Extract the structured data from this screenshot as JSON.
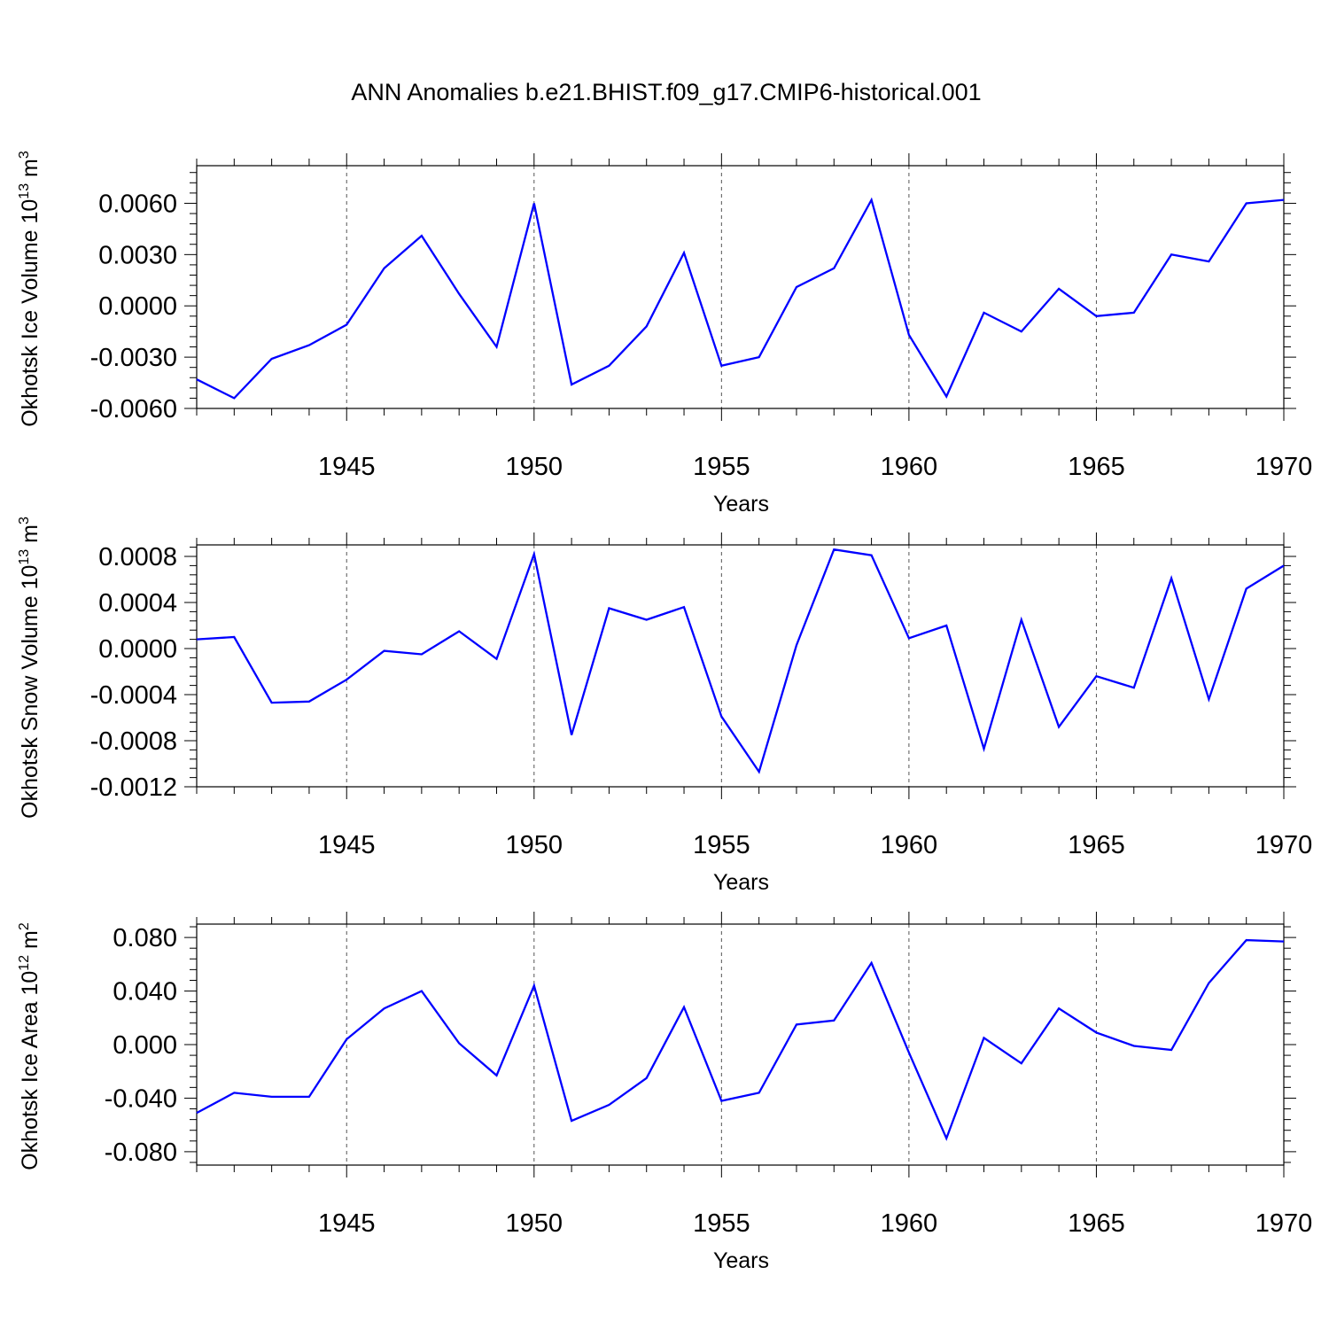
{
  "title": "ANN Anomalies b.e21.BHIST.f09_g17.CMIP6-historical.001",
  "colors": {
    "line": "#0000ff",
    "axis": "#000000",
    "grid": "#555555"
  },
  "chart_data": [
    {
      "type": "line",
      "xlabel": "Years",
      "ylabel": "Okhotsk Ice Volume 10",
      "ylabel_exp": "13",
      "ylabel_unit": " m",
      "ylabel_unit_exp": "3",
      "xlim": [
        1941,
        1970
      ],
      "ylim": [
        -0.006,
        0.0082
      ],
      "xticks": [
        1945,
        1950,
        1955,
        1960,
        1965,
        1970
      ],
      "yticks": [
        -0.006,
        -0.003,
        0.0,
        0.003,
        0.006
      ],
      "ytick_labels": [
        "-0.0060",
        "-0.0030",
        "0.0000",
        "0.0030",
        "0.0060"
      ],
      "grid": "vertical dashed",
      "series": [
        {
          "x": [
            1941,
            1942,
            1943,
            1944,
            1945,
            1946,
            1947,
            1948,
            1949,
            1950,
            1951,
            1952,
            1953,
            1954,
            1955,
            1956,
            1957,
            1958,
            1959,
            1960,
            1961,
            1962,
            1963,
            1964,
            1965,
            1966,
            1967,
            1968,
            1969,
            1970
          ],
          "values": [
            -0.0043,
            -0.0054,
            -0.0031,
            -0.0023,
            -0.0011,
            0.0022,
            0.0041,
            0.0007,
            -0.0024,
            0.006,
            -0.0046,
            -0.0035,
            -0.0012,
            0.0031,
            -0.0035,
            -0.003,
            0.0011,
            0.0022,
            0.0062,
            -0.0017,
            -0.0053,
            -0.0004,
            -0.0015,
            0.001,
            -0.0006,
            -0.0004,
            0.003,
            0.0026,
            0.006,
            0.0062
          ]
        }
      ]
    },
    {
      "type": "line",
      "xlabel": "Years",
      "ylabel": "Okhotsk Snow Volume 10",
      "ylabel_exp": "13",
      "ylabel_unit": " m",
      "ylabel_unit_exp": "3",
      "xlim": [
        1941,
        1970
      ],
      "ylim": [
        -0.0012,
        0.0009
      ],
      "xticks": [
        1945,
        1950,
        1955,
        1960,
        1965,
        1970
      ],
      "yticks": [
        -0.0012,
        -0.0008,
        -0.0004,
        0.0,
        0.0004,
        0.0008
      ],
      "ytick_labels": [
        "-0.0012",
        "-0.0008",
        "-0.0004",
        "0.0000",
        "0.0004",
        "0.0008"
      ],
      "grid": "vertical dashed",
      "series": [
        {
          "x": [
            1941,
            1942,
            1943,
            1944,
            1945,
            1946,
            1947,
            1948,
            1949,
            1950,
            1951,
            1952,
            1953,
            1954,
            1955,
            1956,
            1957,
            1958,
            1959,
            1960,
            1961,
            1962,
            1963,
            1964,
            1965,
            1966,
            1967,
            1968,
            1969,
            1970
          ],
          "values": [
            8e-05,
            0.0001,
            -0.00047,
            -0.00046,
            -0.00027,
            -2e-05,
            -5e-05,
            0.00015,
            -9e-05,
            0.00082,
            -0.00075,
            0.00035,
            0.00025,
            0.00036,
            -0.00059,
            -0.00107,
            3e-05,
            0.00086,
            0.00081,
            9e-05,
            0.0002,
            -0.00087,
            0.00025,
            -0.00068,
            -0.00024,
            -0.00034,
            0.00061,
            -0.00044,
            0.00052,
            0.00072
          ]
        }
      ]
    },
    {
      "type": "line",
      "xlabel": "Years",
      "ylabel": "Okhotsk Ice Area 10",
      "ylabel_exp": "12",
      "ylabel_unit": " m",
      "ylabel_unit_exp": "2",
      "xlim": [
        1941,
        1970
      ],
      "ylim": [
        -0.09,
        0.09
      ],
      "xticks": [
        1945,
        1950,
        1955,
        1960,
        1965,
        1970
      ],
      "yticks": [
        -0.08,
        -0.04,
        0.0,
        0.04,
        0.08
      ],
      "ytick_labels": [
        "-0.080",
        "-0.040",
        "0.000",
        "0.040",
        "0.080"
      ],
      "grid": "vertical dashed",
      "series": [
        {
          "x": [
            1941,
            1942,
            1943,
            1944,
            1945,
            1946,
            1947,
            1948,
            1949,
            1950,
            1951,
            1952,
            1953,
            1954,
            1955,
            1956,
            1957,
            1958,
            1959,
            1960,
            1961,
            1962,
            1963,
            1964,
            1965,
            1966,
            1967,
            1968,
            1969,
            1970
          ],
          "values": [
            -0.051,
            -0.036,
            -0.039,
            -0.039,
            0.004,
            0.027,
            0.04,
            0.001,
            -0.023,
            0.044,
            -0.057,
            -0.045,
            -0.025,
            0.028,
            -0.042,
            -0.036,
            0.015,
            0.018,
            0.061,
            -0.006,
            -0.07,
            0.005,
            -0.014,
            0.027,
            0.009,
            -0.001,
            -0.004,
            0.046,
            0.078,
            0.077
          ]
        }
      ]
    }
  ]
}
